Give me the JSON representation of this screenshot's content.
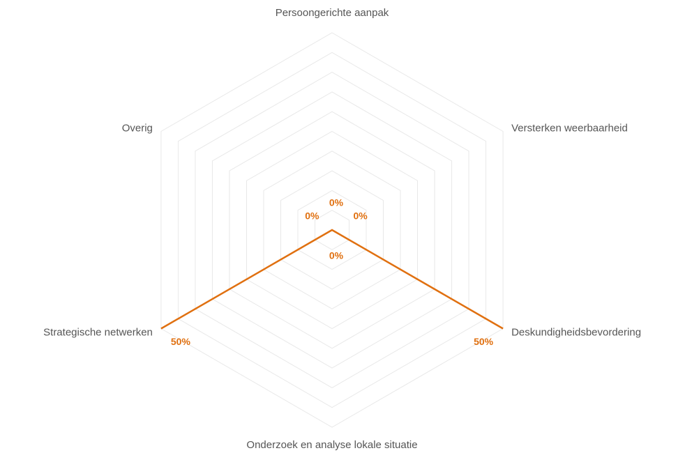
{
  "chart_data": {
    "type": "radar",
    "categories": [
      "Persoongerichte aanpak",
      "Versterken weerbaarheid",
      "Deskundigheidsbevordering",
      "Onderzoek en analyse lokale situatie",
      "Strategische netwerken",
      "Overig"
    ],
    "series": [
      {
        "values": [
          0,
          0,
          50,
          0,
          50,
          0
        ],
        "value_labels": [
          "0%",
          "0%",
          "50%",
          "0%",
          "50%",
          "0%"
        ],
        "color": "#e07010"
      }
    ],
    "rlim": [
      0,
      50
    ],
    "rticks": [
      5,
      10,
      15,
      20,
      25,
      30,
      35,
      40,
      45,
      50
    ],
    "grid": true
  }
}
